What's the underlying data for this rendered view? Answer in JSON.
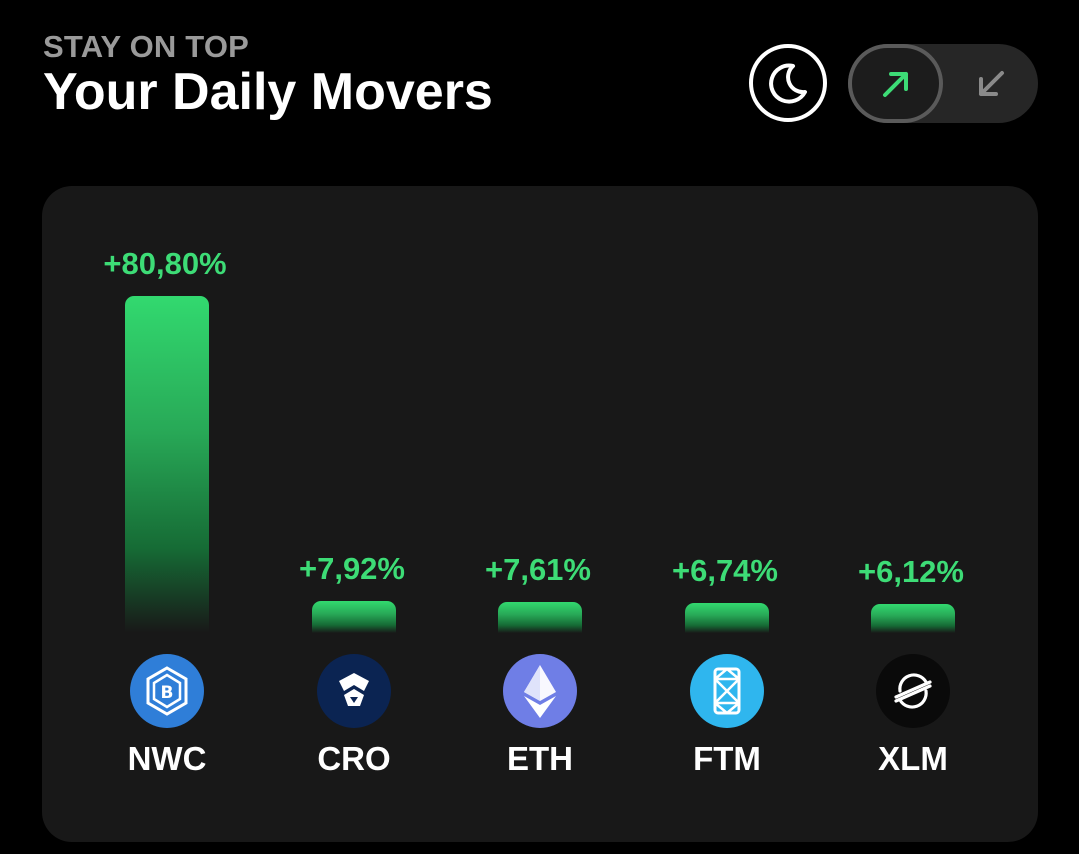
{
  "header": {
    "eyebrow": "STAY ON TOP",
    "title": "Your Daily Movers"
  },
  "controls": {
    "theme_icon": "moon-icon",
    "segments": [
      {
        "icon": "arrow-up-right-icon",
        "selected": true
      },
      {
        "icon": "arrow-down-left-icon",
        "selected": false
      }
    ]
  },
  "colors": {
    "background": "#000000",
    "card": "#181818",
    "gain_green": "#3ddc76",
    "muted_text": "#9a9a9a"
  },
  "movers": [
    {
      "ticker": "NWC",
      "change": "+80,80%",
      "value": 80.8,
      "icon": "newscrypto-coin-icon",
      "icon_color": "#2f7ed8"
    },
    {
      "ticker": "CRO",
      "change": "+7,92%",
      "value": 7.92,
      "icon": "cronos-coin-icon",
      "icon_color": "#0b2452"
    },
    {
      "ticker": "ETH",
      "change": "+7,61%",
      "value": 7.61,
      "icon": "ethereum-coin-icon",
      "icon_color": "#6f7ee6"
    },
    {
      "ticker": "FTM",
      "change": "+6,74%",
      "value": 6.74,
      "icon": "fantom-coin-icon",
      "icon_color": "#2fb6ee"
    },
    {
      "ticker": "XLM",
      "change": "+6,12%",
      "value": 6.12,
      "icon": "stellar-coin-icon",
      "icon_color": "#0a0a0a"
    }
  ],
  "chart_data": {
    "type": "bar",
    "categories": [
      "NWC",
      "CRO",
      "ETH",
      "FTM",
      "XLM"
    ],
    "values": [
      80.8,
      7.92,
      7.61,
      6.74,
      6.12
    ],
    "labels": [
      "+80,80%",
      "+7,92%",
      "+7,61%",
      "+6,74%",
      "+6,12%"
    ],
    "grid": false
  }
}
